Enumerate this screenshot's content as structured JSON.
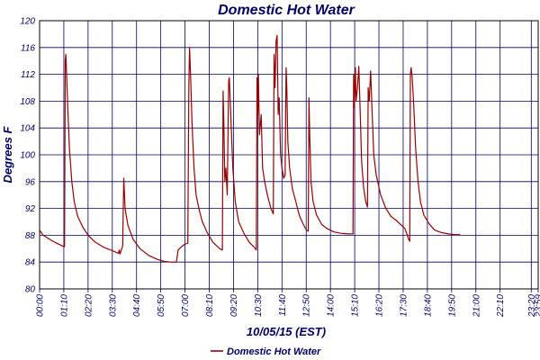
{
  "chart_data": {
    "type": "line",
    "title": "Domestic Hot Water",
    "xlabel": "10/05/15 (EST)",
    "ylabel": "Degrees F",
    "ylim": [
      80,
      120
    ],
    "yticks": [
      80,
      84,
      88,
      92,
      96,
      100,
      104,
      108,
      112,
      116,
      120
    ],
    "xlim": [
      0,
      1440
    ],
    "xticks": [
      {
        "t": 0,
        "label": "00:00"
      },
      {
        "t": 70,
        "label": "01:10"
      },
      {
        "t": 140,
        "label": "02:20"
      },
      {
        "t": 210,
        "label": "03:30"
      },
      {
        "t": 280,
        "label": "04:40"
      },
      {
        "t": 350,
        "label": "05:50"
      },
      {
        "t": 420,
        "label": "07:00"
      },
      {
        "t": 490,
        "label": "08:10"
      },
      {
        "t": 560,
        "label": "09:20"
      },
      {
        "t": 630,
        "label": "10:30"
      },
      {
        "t": 700,
        "label": "11:40"
      },
      {
        "t": 770,
        "label": "12:50"
      },
      {
        "t": 840,
        "label": "14:00"
      },
      {
        "t": 910,
        "label": "15:10"
      },
      {
        "t": 980,
        "label": "16:20"
      },
      {
        "t": 1050,
        "label": "17:30"
      },
      {
        "t": 1120,
        "label": "18:40"
      },
      {
        "t": 1190,
        "label": "19:50"
      },
      {
        "t": 1260,
        "label": "21:00"
      },
      {
        "t": 1330,
        "label": "22:10"
      },
      {
        "t": 1420,
        "label": "23:20"
      },
      {
        "t": 1440,
        "label": "23:59"
      }
    ],
    "grid": true,
    "legend": {
      "placement": "bottom-center"
    },
    "series": [
      {
        "name": "Domestic Hot Water",
        "color": "#990000",
        "points": [
          [
            0,
            88.8
          ],
          [
            10,
            88
          ],
          [
            20,
            87.7
          ],
          [
            35,
            87.2
          ],
          [
            50,
            86.8
          ],
          [
            70,
            86.3
          ],
          [
            72,
            86.3
          ],
          [
            74,
            114
          ],
          [
            76,
            115
          ],
          [
            80,
            109
          ],
          [
            86,
            101
          ],
          [
            93,
            96
          ],
          [
            100,
            93
          ],
          [
            110,
            90.8
          ],
          [
            125,
            89.2
          ],
          [
            140,
            88
          ],
          [
            160,
            87
          ],
          [
            185,
            86.2
          ],
          [
            210,
            85.7
          ],
          [
            228,
            85.3
          ],
          [
            230,
            85.8
          ],
          [
            232,
            85.2
          ],
          [
            240,
            86.4
          ],
          [
            243,
            96.5
          ],
          [
            247,
            92
          ],
          [
            255,
            89.5
          ],
          [
            270,
            87.4
          ],
          [
            290,
            86
          ],
          [
            315,
            85
          ],
          [
            340,
            84.4
          ],
          [
            360,
            84.1
          ],
          [
            380,
            84
          ],
          [
            395,
            84
          ],
          [
            400,
            85.8
          ],
          [
            410,
            86.3
          ],
          [
            420,
            86.7
          ],
          [
            428,
            86.8
          ],
          [
            431,
            110
          ],
          [
            433,
            116
          ],
          [
            436,
            112
          ],
          [
            440,
            105
          ],
          [
            446,
            98
          ],
          [
            452,
            94
          ],
          [
            460,
            92
          ],
          [
            470,
            90
          ],
          [
            485,
            88.3
          ],
          [
            500,
            87
          ],
          [
            520,
            86
          ],
          [
            528,
            85.8
          ],
          [
            530,
            109.5
          ],
          [
            532,
            105
          ],
          [
            535,
            96
          ],
          [
            538,
            98
          ],
          [
            542,
            94
          ],
          [
            546,
            111
          ],
          [
            548,
            111.5
          ],
          [
            552,
            106
          ],
          [
            558,
            98
          ],
          [
            565,
            93
          ],
          [
            575,
            90
          ],
          [
            590,
            88.3
          ],
          [
            605,
            87
          ],
          [
            620,
            86.2
          ],
          [
            626,
            85.8
          ],
          [
            628,
            111.5
          ],
          [
            630,
            106
          ],
          [
            632,
            112
          ],
          [
            635,
            103
          ],
          [
            640,
            106
          ],
          [
            644,
            98
          ],
          [
            650,
            96
          ],
          [
            658,
            94
          ],
          [
            668,
            92
          ],
          [
            675,
            91.2
          ],
          [
            677,
            115
          ],
          [
            680,
            110
          ],
          [
            683,
            117
          ],
          [
            686,
            117.8
          ],
          [
            689,
            106
          ],
          [
            692,
            108.5
          ],
          [
            696,
            100
          ],
          [
            700,
            98
          ],
          [
            705,
            96.5
          ],
          [
            709,
            97
          ],
          [
            712,
            113
          ],
          [
            714,
            110
          ],
          [
            717,
            102
          ],
          [
            722,
            98
          ],
          [
            730,
            95
          ],
          [
            740,
            93
          ],
          [
            750,
            91
          ],
          [
            760,
            89.8
          ],
          [
            770,
            88.8
          ],
          [
            776,
            88.6
          ],
          [
            778,
            108.5
          ],
          [
            780,
            103
          ],
          [
            784,
            96
          ],
          [
            790,
            93
          ],
          [
            800,
            91
          ],
          [
            815,
            89.6
          ],
          [
            830,
            89
          ],
          [
            850,
            88.5
          ],
          [
            870,
            88.3
          ],
          [
            890,
            88.2
          ],
          [
            905,
            88.2
          ],
          [
            907,
            112
          ],
          [
            909,
            107
          ],
          [
            912,
            113
          ],
          [
            914,
            108
          ],
          [
            918,
            110
          ],
          [
            922,
            113.2
          ],
          [
            926,
            106
          ],
          [
            930,
            99
          ],
          [
            936,
            95
          ],
          [
            942,
            93
          ],
          [
            947,
            92.2
          ],
          [
            949,
            110
          ],
          [
            952,
            108
          ],
          [
            956,
            112.5
          ],
          [
            960,
            107
          ],
          [
            965,
            100
          ],
          [
            972,
            97
          ],
          [
            985,
            94
          ],
          [
            1000,
            92
          ],
          [
            1015,
            90.8
          ],
          [
            1030,
            90.2
          ],
          [
            1045,
            89.5
          ],
          [
            1055,
            89
          ],
          [
            1062,
            88
          ],
          [
            1066,
            87.4
          ],
          [
            1069,
            87.1
          ],
          [
            1071,
            112
          ],
          [
            1073,
            113
          ],
          [
            1076,
            111.5
          ],
          [
            1080,
            108
          ],
          [
            1086,
            101
          ],
          [
            1093,
            96
          ],
          [
            1100,
            93
          ],
          [
            1110,
            91
          ],
          [
            1125,
            89.7
          ],
          [
            1140,
            88.8
          ],
          [
            1160,
            88.4
          ],
          [
            1180,
            88.2
          ],
          [
            1200,
            88.1
          ],
          [
            1215,
            88.1
          ]
        ]
      }
    ]
  }
}
